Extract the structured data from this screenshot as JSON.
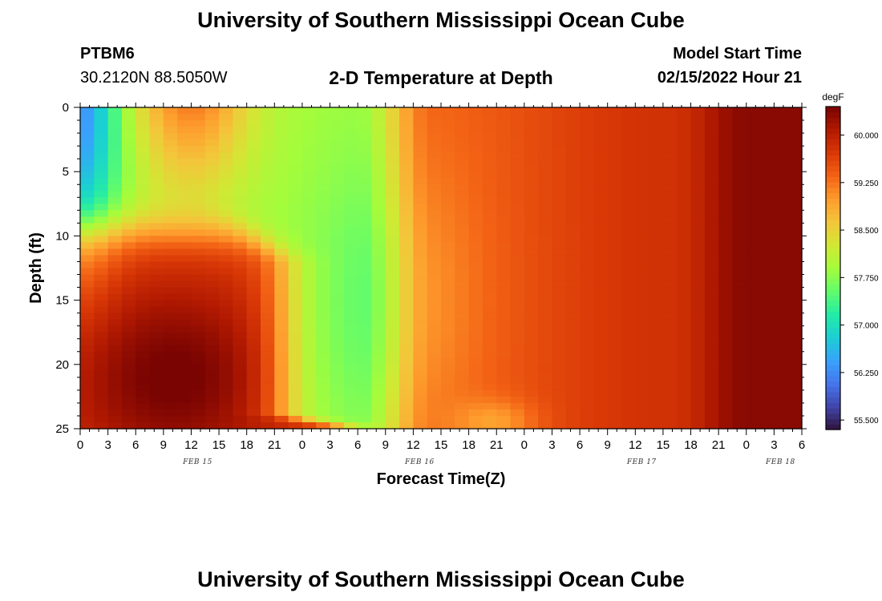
{
  "header": {
    "title": "University of Southern Mississippi Ocean Cube",
    "station": "PTBM6",
    "coords": "30.2120N  88.5050W",
    "plot_title": "2-D Temperature at Depth",
    "start_label": "Model Start Time",
    "start_value": "02/15/2022 Hour 21"
  },
  "footer": {
    "title": "University of Southern Mississippi Ocean Cube"
  },
  "chart_data": {
    "type": "heatmap",
    "title": "2-D Temperature at Depth",
    "xlabel": "Forecast Time(Z)",
    "ylabel": "Depth (ft)",
    "x_ticks": [
      "0",
      "3",
      "6",
      "9",
      "12",
      "15",
      "18",
      "21",
      "0",
      "3",
      "6",
      "9",
      "12",
      "15",
      "18",
      "21",
      "0",
      "3",
      "6",
      "9",
      "12",
      "15",
      "18",
      "21",
      "0",
      "3",
      "6"
    ],
    "day_labels": [
      {
        "label": "FEB 15",
        "hour": 12
      },
      {
        "label": "FEB 16",
        "hour": 36
      },
      {
        "label": "FEB 17",
        "hour": 60
      },
      {
        "label": "FEB 18",
        "hour": 75
      }
    ],
    "x_range_hours": [
      0,
      78
    ],
    "y_ticks": [
      0,
      5,
      10,
      15,
      20,
      25
    ],
    "ylim": [
      0,
      25
    ],
    "y_inverted": true,
    "colorbar": {
      "unit": "degF",
      "ticks": [
        "60.000",
        "59.250",
        "58.500",
        "57.750",
        "57.000",
        "56.250",
        "55.500"
      ],
      "tick_values": [
        60.0,
        59.25,
        58.5,
        57.75,
        57.0,
        56.25,
        55.5
      ],
      "range": [
        55.35,
        60.45
      ],
      "colormap": [
        "#30123b",
        "#4145ab",
        "#4675ed",
        "#39a2fc",
        "#1bcfd4",
        "#24eca6",
        "#61fc6c",
        "#a4fc3b",
        "#d1e834",
        "#f3c63a",
        "#fe9b2d",
        "#f36315",
        "#d93806",
        "#b11901",
        "#7a0402"
      ]
    },
    "temperature_field_note": "",
    "grid_hours_step": 1.5,
    "grid_depth_step": 0.5
  }
}
